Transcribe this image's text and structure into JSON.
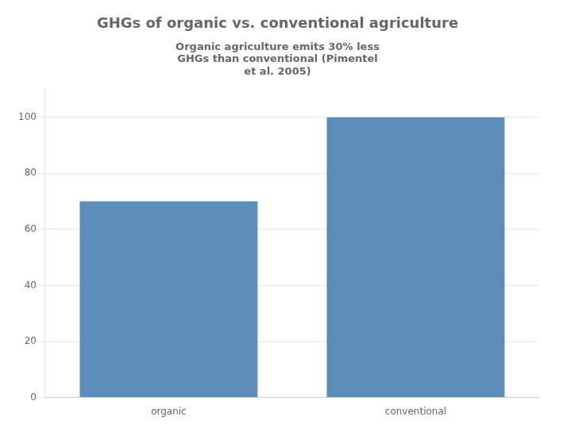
{
  "chart_data": {
    "type": "bar",
    "title": "GHGs of organic vs. conventional agriculture",
    "subtitle": "Organic agriculture emits 30% less\nGHGs than conventional (Pimentel\net al. 2005)",
    "categories": [
      "organic",
      "conventional"
    ],
    "values": [
      70,
      100
    ],
    "color": "#5b8db8",
    "ylim": [
      0,
      110
    ],
    "yticks": [
      0,
      20,
      40,
      60,
      80,
      100
    ],
    "grid": true
  }
}
